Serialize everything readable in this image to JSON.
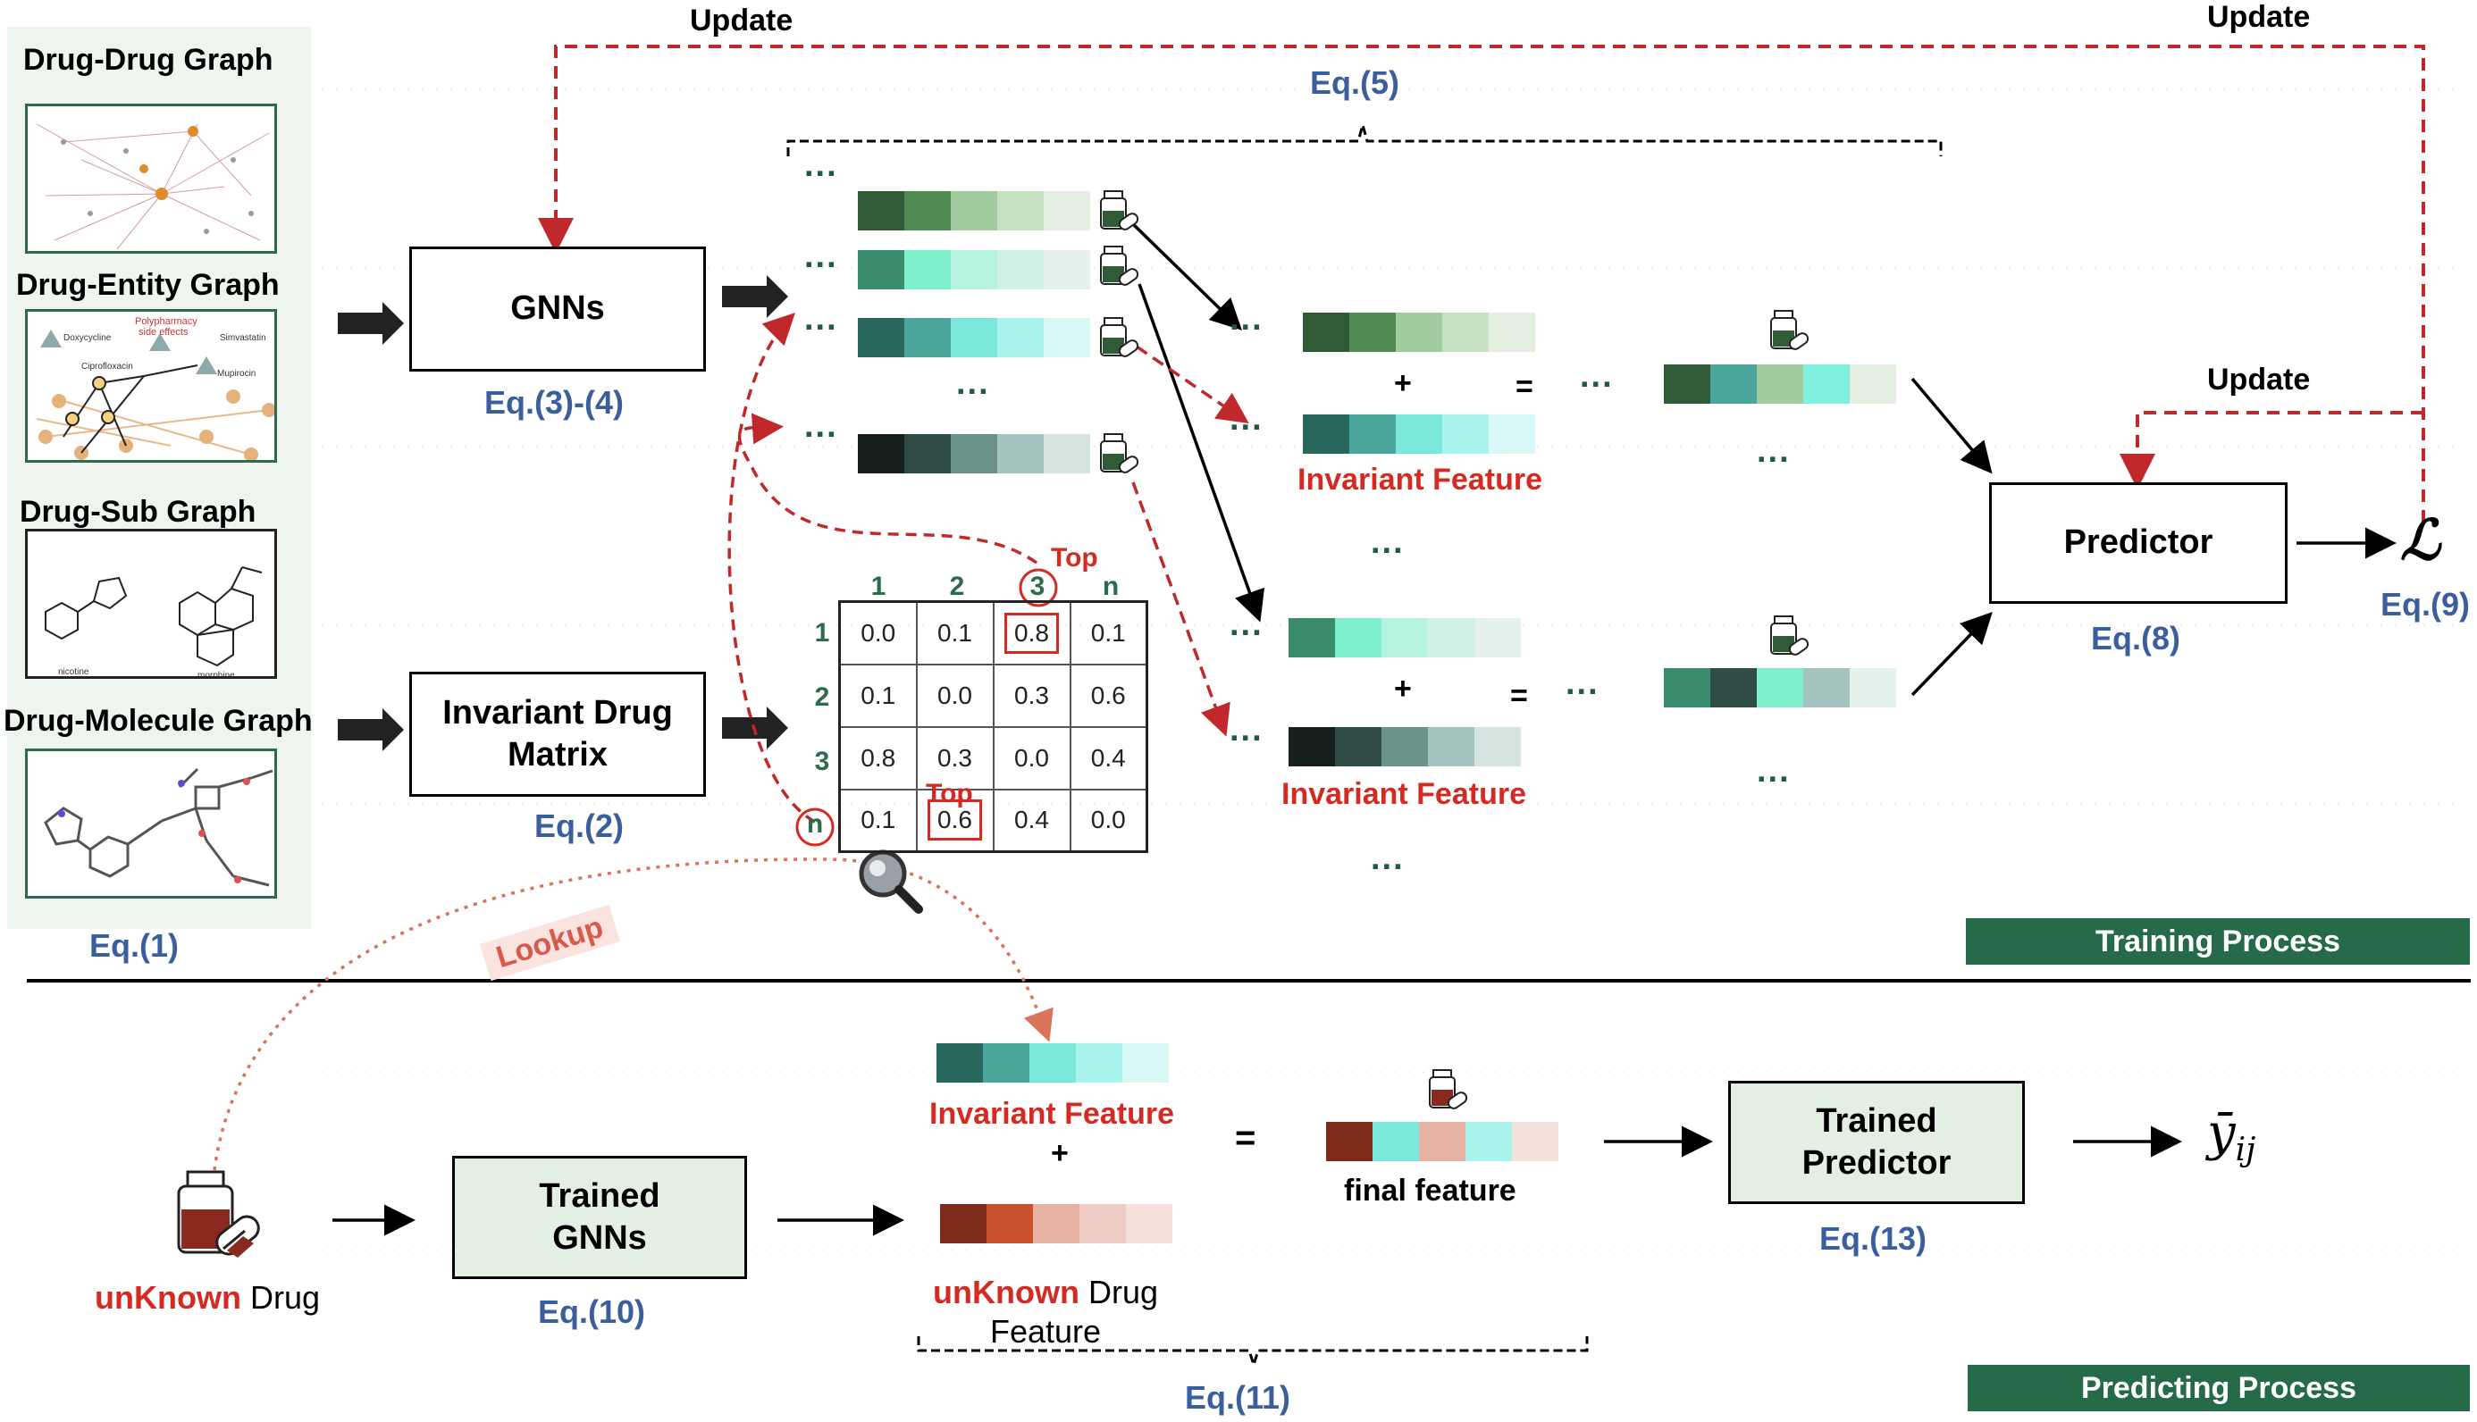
{
  "graphs": {
    "drug_drug": "Drug-Drug Graph",
    "drug_entity": "Drug-Entity Graph",
    "drug_sub": "Drug-Sub Graph",
    "drug_molecule": "Drug-Molecule Graph",
    "entity_labels": [
      "Polypharmacy",
      "side effects",
      "Doxycycline",
      "Simvastatin",
      "Ciprofloxacin",
      "Mupirocin"
    ],
    "sub_labels": [
      "nicotine",
      "morphine"
    ]
  },
  "equations": {
    "eq1": "Eq.(1)",
    "eq2": "Eq.(2)",
    "eq34": "Eq.(3)-(4)",
    "eq5": "Eq.(5)",
    "eq8": "Eq.(8)",
    "eq9": "Eq.(9)",
    "eq10": "Eq.(10)",
    "eq11": "Eq.(11)",
    "eq13": "Eq.(13)"
  },
  "boxes": {
    "gnns": "GNNs",
    "invariant_matrix_1": "Invariant Drug",
    "invariant_matrix_2": "Matrix",
    "predictor": "Predictor",
    "trained_gnns_1": "Trained",
    "trained_gnns_2": "GNNs",
    "trained_predictor_1": "Trained",
    "trained_predictor_2": "Predictor"
  },
  "labels": {
    "update": "Update",
    "invariant_feature": "Invariant Feature",
    "plus": "+",
    "equals": "=",
    "ellipsis": "...",
    "loss": "ℒ",
    "top": "Top",
    "lookup": "Lookup",
    "unknown": "unKnown",
    "drug": "Drug",
    "unknown_feature_word1": "Drug",
    "unknown_feature_word2": "Feature",
    "final_feature": "final feature",
    "output": "ȳ",
    "output_sub": "ij",
    "training_process": "Training Process",
    "predicting_process": "Predicting Process"
  },
  "matrix": {
    "col_headers": [
      "1",
      "2",
      "3",
      "n"
    ],
    "row_headers": [
      "1",
      "2",
      "3",
      "n"
    ],
    "rows": [
      [
        "0.0",
        "0.1",
        "0.8",
        "0.1"
      ],
      [
        "0.1",
        "0.0",
        "0.3",
        "0.6"
      ],
      [
        "0.8",
        "0.3",
        "0.0",
        "0.4"
      ],
      [
        "0.1",
        "0.6",
        "0.4",
        "0.0"
      ]
    ],
    "highlighted": [
      [
        0,
        2
      ],
      [
        3,
        1
      ]
    ]
  },
  "colors": {
    "dark_green": "#2d6b4f",
    "red": "#d42a22",
    "eq_blue": "#3b5f9c",
    "badge_green": "#256b4a",
    "box_green": "#e3efe3"
  }
}
